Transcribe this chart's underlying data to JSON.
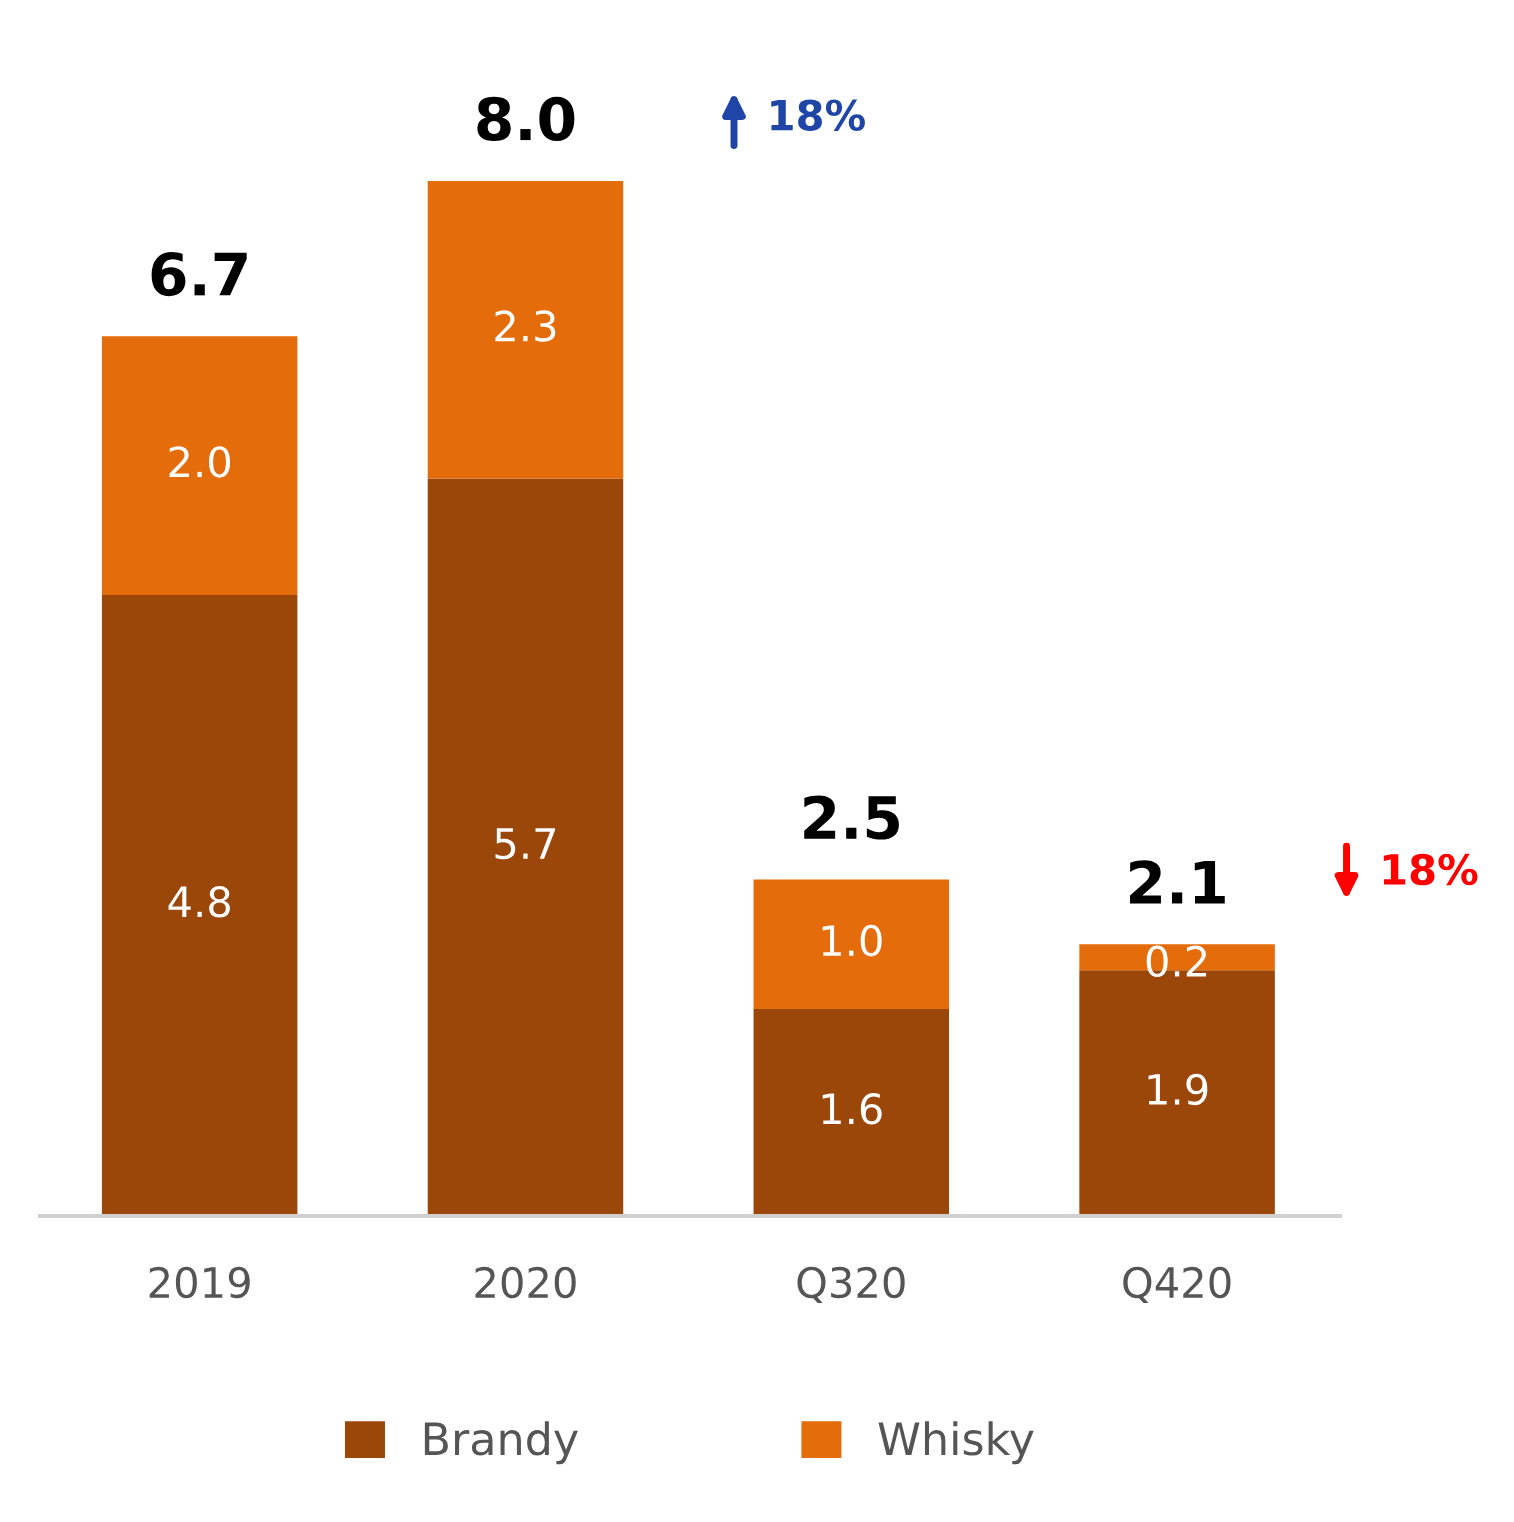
{
  "chart_data": {
    "type": "bar",
    "stacked": true,
    "categories": [
      "2019",
      "2020",
      "Q320",
      "Q420"
    ],
    "series": [
      {
        "name": "Brandy",
        "color": "#9a4709",
        "values": [
          4.8,
          5.7,
          1.6,
          1.9
        ],
        "value_labels": [
          "4.8",
          "5.7",
          "1.6",
          "1.9"
        ]
      },
      {
        "name": "Whisky",
        "color": "#e46c0a",
        "values": [
          2.0,
          2.3,
          1.0,
          0.2
        ],
        "value_labels": [
          "2.0",
          "2.3",
          "1.0",
          "0.2"
        ]
      }
    ],
    "totals": [
      "6.7",
      "8.0",
      "2.5",
      "2.1"
    ],
    "annotations": [
      "18%",
      "18%"
    ],
    "legend": "bottom",
    "grid": false
  }
}
